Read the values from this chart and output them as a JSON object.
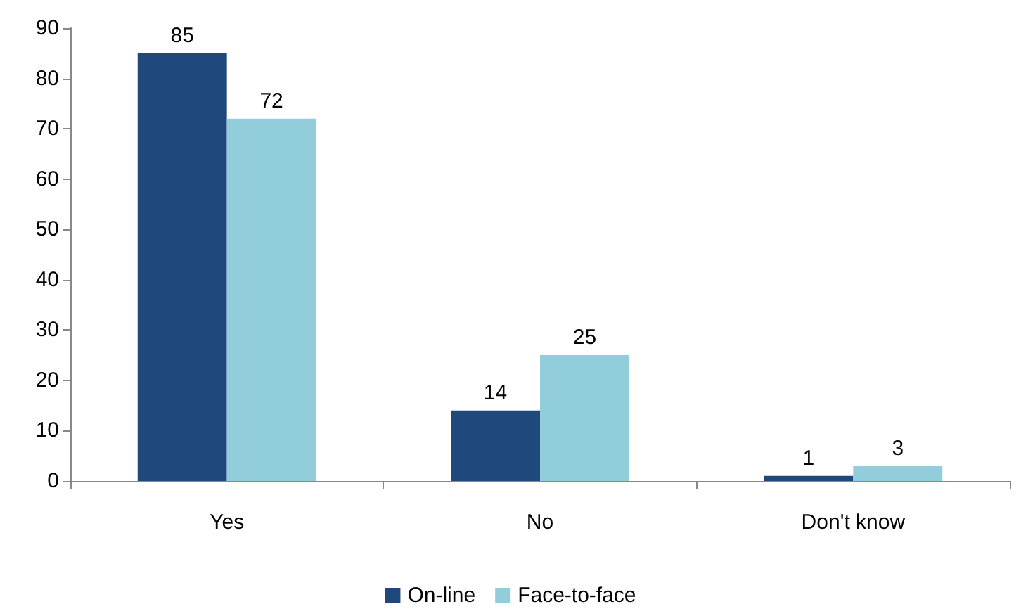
{
  "chart_data": {
    "type": "bar",
    "categories": [
      "Yes",
      "No",
      "Don't know"
    ],
    "series": [
      {
        "name": "On-line",
        "color": "#1f497d",
        "values": [
          85,
          14,
          1
        ]
      },
      {
        "name": "Face-to-face",
        "color": "#92cddc",
        "values": [
          72,
          25,
          3
        ]
      }
    ],
    "ylim": [
      0,
      90
    ],
    "yticks": [
      0,
      10,
      20,
      30,
      40,
      50,
      60,
      70,
      80,
      90
    ],
    "grid": false,
    "legend": "bottom",
    "data_labels": true
  }
}
